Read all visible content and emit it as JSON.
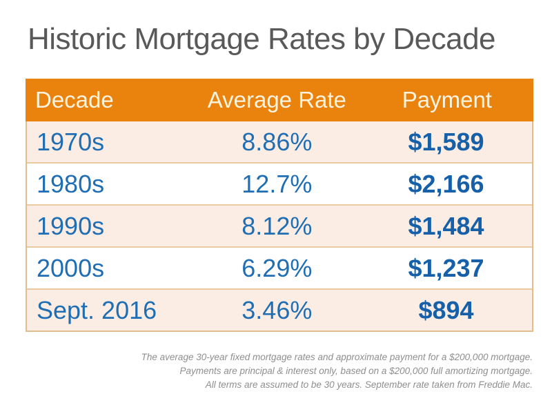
{
  "title": "Historic Mortgage Rates by Decade",
  "table": {
    "headers": {
      "decade": "Decade",
      "rate": "Average Rate",
      "payment": "Payment"
    },
    "rows": [
      {
        "decade": "1970s",
        "rate": "8.86%",
        "payment": "$1,589"
      },
      {
        "decade": "1980s",
        "rate": "12.7%",
        "payment": "$2,166"
      },
      {
        "decade": "1990s",
        "rate": "8.12%",
        "payment": "$1,484"
      },
      {
        "decade": "2000s",
        "rate": "6.29%",
        "payment": "$1,237"
      },
      {
        "decade": "Sept. 2016",
        "rate": "3.46%",
        "payment": "$894"
      }
    ]
  },
  "footnotes": [
    "The average 30-year fixed mortgage rates and approximate payment for a $200,000 mortgage.",
    "Payments are principal & interest only, based on a $200,000 full amortizing mortgage.",
    "All terms are assumed to be 30 years. September rate taken from Freddie Mac."
  ],
  "colors": {
    "header_bg": "#EA830E",
    "header_text": "#FCF3DF",
    "row_alt_bg": "#FBEDE4",
    "row_bg": "#FFFFFF",
    "border_tan": "#E2BE8F",
    "separator_tan": "#EBC9A0",
    "data_blue": "#1F6EB4",
    "payment_blue": "#1560A8",
    "title_gray": "#595959",
    "footnote_gray": "#8E8E8E"
  },
  "chart_data": {
    "type": "table",
    "title": "Historic Mortgage Rates by Decade",
    "columns": [
      "Decade",
      "Average Rate",
      "Payment"
    ],
    "rows": [
      [
        "1970s",
        "8.86%",
        "$1,589"
      ],
      [
        "1980s",
        "12.7%",
        "$2,166"
      ],
      [
        "1990s",
        "8.12%",
        "$1,484"
      ],
      [
        "2000s",
        "6.29%",
        "$1,237"
      ],
      [
        "Sept. 2016",
        "3.46%",
        "$894"
      ]
    ],
    "numeric": {
      "average_rate_pct": [
        8.86,
        12.7,
        8.12,
        6.29,
        3.46
      ],
      "payment_usd": [
        1589,
        2166,
        1484,
        1237,
        894
      ]
    },
    "notes": [
      "The average 30-year fixed mortgage rates and approximate payment for a $200,000 mortgage.",
      "Payments are principal & interest only, based on a $200,000 full amortizing mortgage.",
      "All terms are assumed to be 30 years. September rate taken from Freddie Mac."
    ]
  }
}
